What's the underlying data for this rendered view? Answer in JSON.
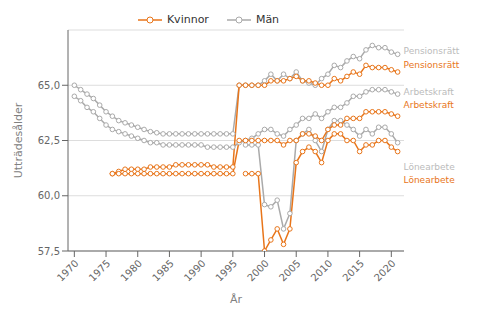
{
  "chart_data": {
    "type": "line",
    "xlabel": "År",
    "ylabel": "Utträdesålder",
    "xlim": [
      1969,
      2022
    ],
    "xticks": [
      1970,
      1975,
      1980,
      1985,
      1990,
      1995,
      2000,
      2005,
      2010,
      2015,
      2020
    ],
    "ylim": [
      57.5,
      67.5
    ],
    "yticks": [
      {
        "value": 57.5,
        "label": "57,5"
      },
      {
        "value": 60.0,
        "label": "60,0"
      },
      {
        "value": 62.5,
        "label": "62,5"
      },
      {
        "value": 65.0,
        "label": "65,0"
      }
    ],
    "grid": true,
    "legend": "top",
    "marker": "circle",
    "annotations": [
      {
        "text": "Pensionsrätt",
        "color": "#BBBBBB",
        "x": 2021.3,
        "y": 66.55
      },
      {
        "text": "Pensionsrätt",
        "color": "#E8751A",
        "x": 2021.3,
        "y": 65.9
      },
      {
        "text": "Arbetskraft",
        "color": "#BBBBBB",
        "x": 2021.3,
        "y": 64.7
      },
      {
        "text": "Arbetskraft",
        "color": "#E8751A",
        "x": 2021.3,
        "y": 64.1
      },
      {
        "text": "Lönearbete",
        "color": "#BBBBBB",
        "x": 2021.3,
        "y": 61.3
      },
      {
        "text": "Lönearbete",
        "color": "#E8751A",
        "x": 2021.3,
        "y": 60.7
      }
    ],
    "series": [
      {
        "name": "Män",
        "color": "#AAAAAA",
        "x": [
          1970,
          1971,
          1972,
          1973,
          1974,
          1975,
          1976,
          1977,
          1978,
          1979,
          1980,
          1981,
          1982,
          1983,
          1984,
          1985,
          1986,
          1987,
          1988,
          1989,
          1990,
          1991,
          1992,
          1993,
          1994,
          1995,
          1996,
          1997,
          1998,
          1999,
          2000,
          2001,
          2002,
          2003,
          2004,
          2005,
          2006,
          2007,
          2008,
          2009,
          2010,
          2011,
          2012,
          2013,
          2014,
          2015,
          2016,
          2017,
          2018,
          2019,
          2020,
          2021
        ],
        "values": [
          65.0,
          64.8,
          64.6,
          64.4,
          64.1,
          63.8,
          63.6,
          63.4,
          63.3,
          63.2,
          63.1,
          63.0,
          62.9,
          62.85,
          62.8,
          62.8,
          62.8,
          62.8,
          62.8,
          62.8,
          62.8,
          62.8,
          62.8,
          62.8,
          62.8,
          62.8,
          65.0,
          65.0,
          65.0,
          65.0,
          65.2,
          65.5,
          65.2,
          65.5,
          65.3,
          65.6,
          65.2,
          65.1,
          65.0,
          65.3,
          65.5,
          65.9,
          65.8,
          66.1,
          66.3,
          66.2,
          66.6,
          66.8,
          66.7,
          66.7,
          66.5,
          66.4
        ]
      },
      {
        "name": "Män",
        "color": "#AAAAAA",
        "x": [
          1970,
          1971,
          1972,
          1973,
          1974,
          1975,
          1976,
          1977,
          1978,
          1979,
          1980,
          1981,
          1982,
          1983,
          1984,
          1985,
          1986,
          1987,
          1988,
          1989,
          1990,
          1991,
          1992,
          1993,
          1994,
          1995,
          1996,
          1997,
          1998,
          1999,
          2000,
          2001,
          2002,
          2003,
          2004,
          2005,
          2006,
          2007,
          2008,
          2009,
          2010,
          2011,
          2012,
          2013,
          2014,
          2015,
          2016,
          2017,
          2018,
          2019,
          2020,
          2021
        ],
        "values": [
          64.5,
          64.3,
          64.0,
          63.8,
          63.5,
          63.2,
          63.0,
          62.9,
          62.8,
          62.7,
          62.6,
          62.5,
          62.4,
          62.4,
          62.3,
          62.3,
          62.3,
          62.3,
          62.3,
          62.3,
          62.3,
          62.2,
          62.2,
          62.2,
          62.2,
          62.2,
          62.4,
          62.5,
          62.6,
          62.8,
          63.0,
          63.0,
          62.8,
          62.7,
          63.0,
          63.2,
          63.5,
          63.5,
          63.7,
          63.5,
          63.8,
          64.0,
          64.0,
          64.2,
          64.5,
          64.5,
          64.7,
          64.8,
          64.8,
          64.8,
          64.7,
          64.6
        ]
      },
      {
        "name": "Män",
        "color": "#AAAAAA",
        "x": [
          1997,
          1998,
          1999,
          2000,
          2001,
          2002,
          2003,
          2004,
          2005,
          2006,
          2007,
          2008,
          2009,
          2010,
          2011,
          2012,
          2013,
          2014,
          2015,
          2016,
          2017,
          2018,
          2019,
          2020,
          2021
        ],
        "values": [
          62.3,
          62.3,
          62.3,
          59.6,
          59.5,
          59.8,
          58.5,
          59.2,
          62.5,
          62.8,
          63.0,
          62.5,
          62.0,
          63.0,
          63.4,
          63.4,
          63.2,
          63.0,
          62.7,
          63.0,
          62.8,
          63.1,
          63.1,
          62.8,
          62.4
        ]
      },
      {
        "name": "Kvinnor",
        "color": "#E8751A",
        "x": [
          1976,
          1977,
          1978,
          1979,
          1980,
          1981,
          1982,
          1983,
          1984,
          1985,
          1986,
          1987,
          1988,
          1989,
          1990,
          1991,
          1992,
          1993,
          1994,
          1995,
          1996,
          1997,
          1998,
          1999,
          2000,
          2001,
          2002,
          2003,
          2004,
          2005,
          2006,
          2007,
          2008,
          2009,
          2010,
          2011,
          2012,
          2013,
          2014,
          2015,
          2016,
          2017,
          2018,
          2019,
          2020,
          2021
        ],
        "values": [
          61.0,
          61.1,
          61.2,
          61.2,
          61.2,
          61.2,
          61.3,
          61.3,
          61.3,
          61.3,
          61.4,
          61.4,
          61.4,
          61.4,
          61.4,
          61.4,
          61.3,
          61.3,
          61.3,
          61.3,
          65.0,
          65.0,
          65.0,
          65.0,
          65.0,
          65.2,
          65.2,
          65.2,
          65.3,
          65.4,
          65.2,
          65.2,
          65.1,
          65.0,
          65.0,
          65.3,
          65.2,
          65.4,
          65.6,
          65.5,
          65.9,
          65.8,
          65.8,
          65.8,
          65.7,
          65.6
        ]
      },
      {
        "name": "Kvinnor",
        "color": "#E8751A",
        "x": [
          1976,
          1977,
          1978,
          1979,
          1980,
          1981,
          1982,
          1983,
          1984,
          1985,
          1986,
          1987,
          1988,
          1989,
          1990,
          1991,
          1992,
          1993,
          1994,
          1995,
          1996,
          1997,
          1998,
          1999,
          2000,
          2001,
          2002,
          2003,
          2004,
          2005,
          2006,
          2007,
          2008,
          2009,
          2010,
          2011,
          2012,
          2013,
          2014,
          2015,
          2016,
          2017,
          2018,
          2019,
          2020,
          2021
        ],
        "values": [
          61.0,
          61.0,
          61.0,
          61.0,
          61.0,
          61.0,
          61.0,
          61.0,
          61.0,
          61.0,
          61.0,
          61.0,
          61.0,
          61.0,
          61.0,
          61.0,
          61.0,
          61.0,
          61.0,
          61.0,
          62.5,
          62.5,
          62.5,
          62.5,
          62.5,
          62.5,
          62.5,
          62.3,
          62.5,
          62.5,
          62.8,
          62.8,
          62.7,
          62.5,
          63.0,
          63.2,
          63.2,
          63.5,
          63.5,
          63.5,
          63.8,
          63.8,
          63.8,
          63.8,
          63.7,
          63.6
        ]
      },
      {
        "name": "Kvinnor",
        "color": "#E8751A",
        "x": [
          1997,
          1998,
          1999,
          2000,
          2001,
          2002,
          2003,
          2004,
          2005,
          2006,
          2007,
          2008,
          2009,
          2010,
          2011,
          2012,
          2013,
          2014,
          2015,
          2016,
          2017,
          2018,
          2019,
          2020,
          2021
        ],
        "values": [
          61.0,
          61.0,
          61.0,
          57.5,
          58.0,
          58.5,
          57.8,
          58.5,
          61.5,
          62.0,
          62.2,
          62.0,
          61.5,
          62.5,
          62.8,
          62.8,
          62.5,
          62.5,
          62.0,
          62.3,
          62.3,
          62.5,
          62.5,
          62.2,
          62.0
        ]
      }
    ]
  }
}
